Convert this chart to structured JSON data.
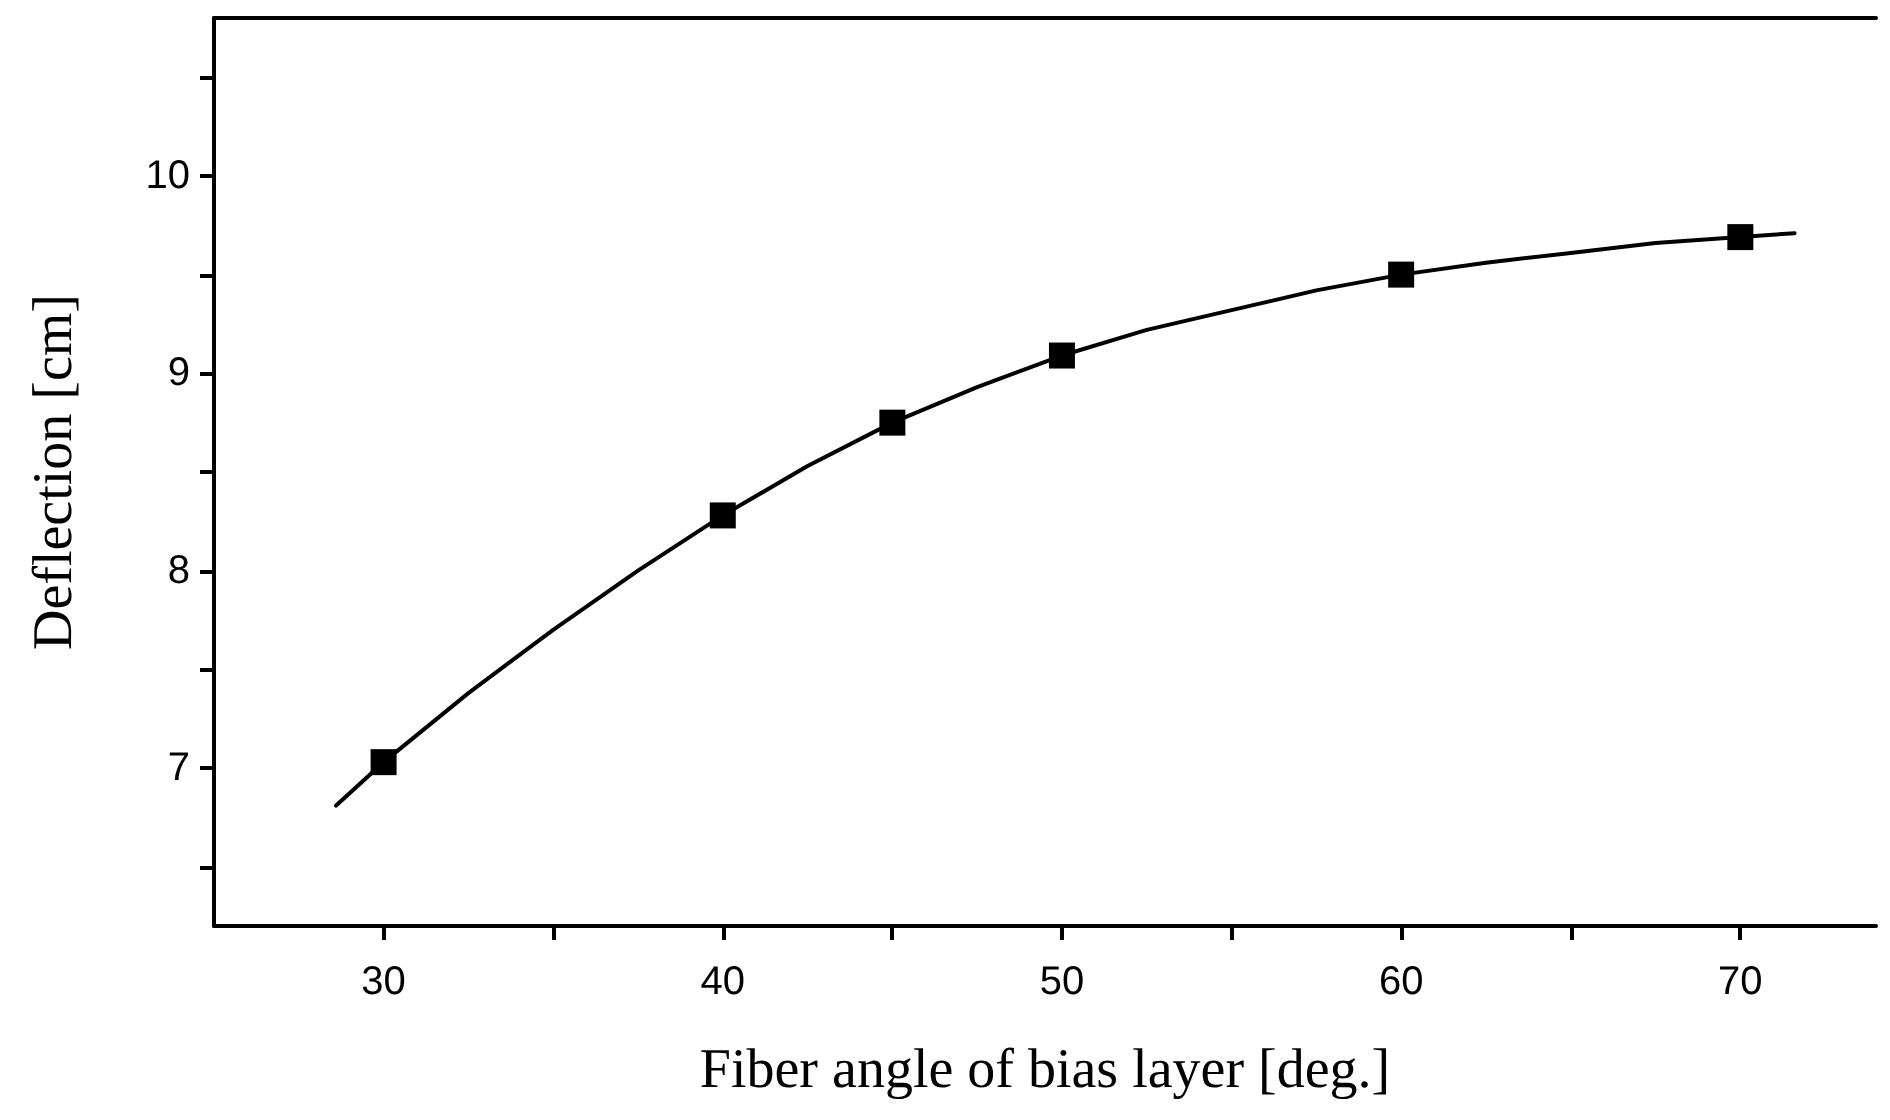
{
  "chart_data": {
    "type": "scatter",
    "xlabel": "Fiber angle of bias layer [deg.]",
    "ylabel": "Deflection [cm]",
    "xlim": [
      25,
      74
    ],
    "ylim": [
      6.2,
      10.8
    ],
    "xticks": [
      30,
      {
        "value": 35,
        "label": null
      },
      40,
      {
        "value": 45,
        "label": null
      },
      50,
      {
        "value": 55,
        "label": null
      },
      60,
      {
        "value": 65,
        "label": null
      },
      70
    ],
    "yticks": [
      {
        "value": 6.5,
        "label": null
      },
      7,
      {
        "value": 7.5,
        "label": null
      },
      8,
      {
        "value": 8.5,
        "label": null
      },
      9,
      {
        "value": 9.5,
        "label": null
      },
      10,
      {
        "value": 10.5,
        "label": null
      }
    ],
    "grid": false,
    "marker": "square",
    "series": [
      {
        "type": "line",
        "color": "#000000",
        "marker": "none",
        "x": [
          28.6,
          30,
          32.5,
          35,
          37.5,
          40,
          42.5,
          45,
          47.5,
          50,
          52.5,
          55,
          57.5,
          60,
          62.5,
          65,
          67.5,
          70,
          71.6
        ],
        "values": [
          6.81,
          7.03,
          7.38,
          7.7,
          8.0,
          8.28,
          8.53,
          8.75,
          8.93,
          9.09,
          9.22,
          9.32,
          9.42,
          9.5,
          9.56,
          9.61,
          9.66,
          9.69,
          9.71
        ]
      },
      {
        "color": "#000000",
        "x": [
          30,
          40,
          45,
          50,
          60,
          70
        ],
        "values": [
          7.03,
          8.28,
          8.75,
          9.09,
          9.5,
          9.69
        ]
      }
    ]
  }
}
